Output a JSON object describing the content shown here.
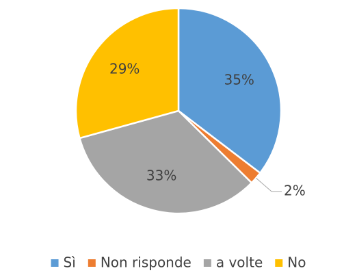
{
  "chart_data": {
    "type": "pie",
    "categories": [
      "Sì",
      "Non risponde",
      "a volte",
      "No"
    ],
    "values": [
      35,
      2,
      33,
      29
    ],
    "value_labels": [
      "35%",
      "2%",
      "33%",
      "29%"
    ],
    "colors": [
      "#5b9bd5",
      "#ed7d31",
      "#a5a5a5",
      "#ffc000"
    ],
    "legend": "bottom"
  }
}
